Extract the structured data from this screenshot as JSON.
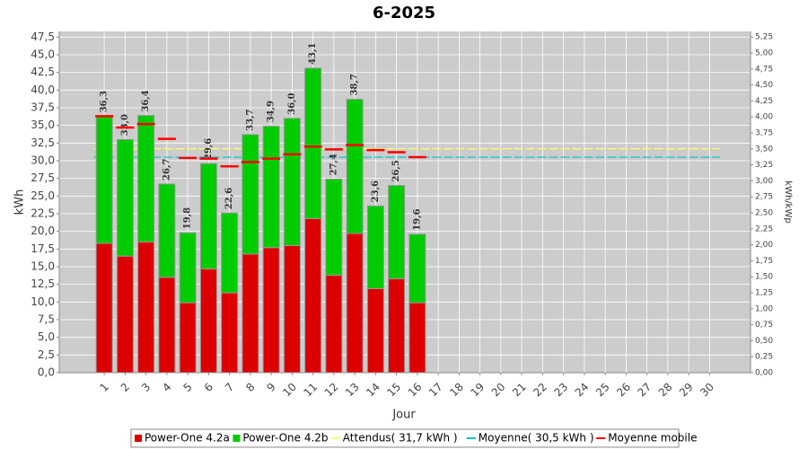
{
  "chart_data": {
    "type": "stacked_bar",
    "title": "6-2025",
    "x_label": "Jour",
    "y_label": "kWh",
    "y2_label": "kWh/kWp",
    "categories": [
      "1",
      "2",
      "3",
      "4",
      "5",
      "6",
      "7",
      "8",
      "9",
      "10",
      "11",
      "12",
      "13",
      "14",
      "15",
      "16",
      "17",
      "18",
      "19",
      "20",
      "21",
      "22",
      "23",
      "24",
      "25",
      "26",
      "27",
      "28",
      "29",
      "30"
    ],
    "series": [
      {
        "name": "Power-One 4.2a",
        "color": "#dd0000",
        "values": [
          18.3,
          16.5,
          18.5,
          13.5,
          9.9,
          14.7,
          11.3,
          16.8,
          17.7,
          18.0,
          21.8,
          13.8,
          19.7,
          11.9,
          13.3,
          9.9,
          0,
          0,
          0,
          0,
          0,
          0,
          0,
          0,
          0,
          0,
          0,
          0,
          0,
          0
        ]
      },
      {
        "name": "Power-One 4.2b",
        "color": "#00cc00",
        "values": [
          18.0,
          16.5,
          17.9,
          13.2,
          9.9,
          14.9,
          11.3,
          16.9,
          17.2,
          18.0,
          21.3,
          13.6,
          19.0,
          11.7,
          13.2,
          9.7,
          0,
          0,
          0,
          0,
          0,
          0,
          0,
          0,
          0,
          0,
          0,
          0,
          0,
          0
        ]
      }
    ],
    "total_labels": [
      "36,3",
      "33,0",
      "36,4",
      "26,7",
      "19,8",
      "29,6",
      "22,6",
      "33,7",
      "34,9",
      "36,0",
      "43,1",
      "27,4",
      "38,7",
      "23,6",
      "26,5",
      "19,6"
    ],
    "expected": {
      "name": "Attendus( 31,7 kWh )",
      "color": "#ffff66",
      "value": 31.7
    },
    "mean": {
      "name": "Moyenne( 30,5 kWh )",
      "color": "#00c0d0",
      "value": 30.5
    },
    "moving_average": {
      "name": "Moyenne mobile",
      "color": "#ff0000",
      "values": [
        36.3,
        34.7,
        35.2,
        33.1,
        30.4,
        30.3,
        29.2,
        29.8,
        30.3,
        30.9,
        32.0,
        31.6,
        32.2,
        31.5,
        31.2,
        30.5,
        null,
        null,
        null,
        null,
        null,
        null,
        null,
        null,
        null,
        null,
        null,
        null,
        null,
        null
      ]
    },
    "ylim": [
      0,
      48.3
    ],
    "yticks": [
      {
        "value": 0,
        "label": "0,0"
      },
      {
        "value": 2.5,
        "label": "2,5"
      },
      {
        "value": 5,
        "label": "5,0"
      },
      {
        "value": 7.5,
        "label": "7,5"
      },
      {
        "value": 10,
        "label": "10,0"
      },
      {
        "value": 12.5,
        "label": "12,5"
      },
      {
        "value": 15,
        "label": "15,0"
      },
      {
        "value": 17.5,
        "label": "17,5"
      },
      {
        "value": 20,
        "label": "20,0"
      },
      {
        "value": 22.5,
        "label": "22,5"
      },
      {
        "value": 25,
        "label": "25,0"
      },
      {
        "value": 27.5,
        "label": "27,5"
      },
      {
        "value": 30,
        "label": "30,0"
      },
      {
        "value": 32.5,
        "label": "32,5"
      },
      {
        "value": 35,
        "label": "35,0"
      },
      {
        "value": 37.5,
        "label": "37,5"
      },
      {
        "value": 40,
        "label": "40,0"
      },
      {
        "value": 42.5,
        "label": "42,5"
      },
      {
        "value": 45,
        "label": "45,0"
      },
      {
        "value": 47.5,
        "label": "47,5"
      }
    ],
    "y2lim": [
      0,
      5.337
    ],
    "y2ticks": [
      {
        "value": 0,
        "label": "0,00"
      },
      {
        "value": 0.25,
        "label": "0,25"
      },
      {
        "value": 0.5,
        "label": "0,50"
      },
      {
        "value": 0.75,
        "label": "0,75"
      },
      {
        "value": 1,
        "label": "1,00"
      },
      {
        "value": 1.25,
        "label": "1,25"
      },
      {
        "value": 1.5,
        "label": "1,50"
      },
      {
        "value": 1.75,
        "label": "1,75"
      },
      {
        "value": 2,
        "label": "2,00"
      },
      {
        "value": 2.25,
        "label": "2,25"
      },
      {
        "value": 2.5,
        "label": "2,50"
      },
      {
        "value": 2.75,
        "label": "2,75"
      },
      {
        "value": 3,
        "label": "3,00"
      },
      {
        "value": 3.25,
        "label": "3,25"
      },
      {
        "value": 3.5,
        "label": "3,50"
      },
      {
        "value": 3.75,
        "label": "3,75"
      },
      {
        "value": 4,
        "label": "4,00"
      },
      {
        "value": 4.25,
        "label": "4,25"
      },
      {
        "value": 4.5,
        "label": "4,50"
      },
      {
        "value": 4.75,
        "label": "4,75"
      },
      {
        "value": 5,
        "label": "5,00"
      },
      {
        "value": 5.25,
        "label": "5,25"
      }
    ],
    "grid": true
  }
}
